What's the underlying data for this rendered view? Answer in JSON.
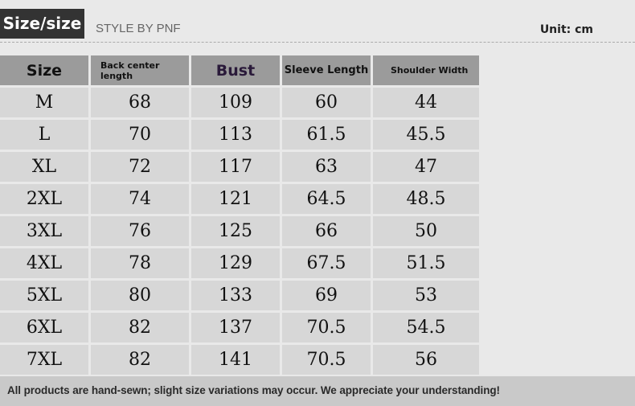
{
  "header": {
    "title": "Size/size",
    "brand": "STYLE BY PNF",
    "unit": "Unit: cm"
  },
  "table": {
    "columns": [
      "Size",
      "Back center length",
      "Bust",
      "Sleeve Length",
      "Shoulder Width"
    ],
    "rows": [
      [
        "M",
        "68",
        "109",
        "60",
        "44"
      ],
      [
        "L",
        "70",
        "113",
        "61.5",
        "45.5"
      ],
      [
        "XL",
        "72",
        "117",
        "63",
        "47"
      ],
      [
        "2XL",
        "74",
        "121",
        "64.5",
        "48.5"
      ],
      [
        "3XL",
        "76",
        "125",
        "66",
        "50"
      ],
      [
        "4XL",
        "78",
        "129",
        "67.5",
        "51.5"
      ],
      [
        "5XL",
        "80",
        "133",
        "69",
        "53"
      ],
      [
        "6XL",
        "82",
        "137",
        "70.5",
        "54.5"
      ],
      [
        "7XL",
        "82",
        "141",
        "70.5",
        "56"
      ]
    ]
  },
  "footer": {
    "note": "All products are hand-sewn; slight size variations may occur. We appreciate your understanding!"
  }
}
